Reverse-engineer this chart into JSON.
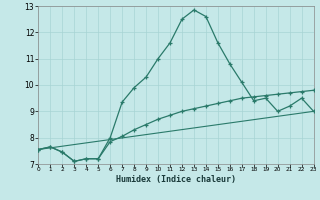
{
  "title": "",
  "xlabel": "Humidex (Indice chaleur)",
  "xlim": [
    0,
    23
  ],
  "ylim": [
    7,
    13
  ],
  "yticks": [
    7,
    8,
    9,
    10,
    11,
    12,
    13
  ],
  "xticks": [
    0,
    1,
    2,
    3,
    4,
    5,
    6,
    7,
    8,
    9,
    10,
    11,
    12,
    13,
    14,
    15,
    16,
    17,
    18,
    19,
    20,
    21,
    22,
    23
  ],
  "background_color": "#c5e8e8",
  "grid_color": "#a8d4d4",
  "line_color": "#2a7a6a",
  "line1_x": [
    0,
    1,
    2,
    3,
    4,
    5,
    6,
    7,
    8,
    9,
    10,
    11,
    12,
    13,
    14,
    15,
    16,
    17,
    18,
    19,
    20,
    21,
    22,
    23
  ],
  "line1_y": [
    7.55,
    7.65,
    7.45,
    7.1,
    7.2,
    7.2,
    8.0,
    9.35,
    9.9,
    10.3,
    11.0,
    11.6,
    12.5,
    12.85,
    12.6,
    11.6,
    10.8,
    10.1,
    9.4,
    9.5,
    9.0,
    9.2,
    9.5,
    9.0
  ],
  "line2_x": [
    0,
    1,
    2,
    3,
    4,
    5,
    6,
    7,
    8,
    9,
    10,
    11,
    12,
    13,
    14,
    15,
    16,
    17,
    18,
    19,
    20,
    21,
    22,
    23
  ],
  "line2_y": [
    7.55,
    7.65,
    7.45,
    7.1,
    7.2,
    7.2,
    7.85,
    8.05,
    8.3,
    8.5,
    8.7,
    8.85,
    9.0,
    9.1,
    9.2,
    9.3,
    9.4,
    9.5,
    9.55,
    9.6,
    9.65,
    9.7,
    9.75,
    9.8
  ],
  "line3_x": [
    0,
    23
  ],
  "line3_y": [
    7.55,
    9.0
  ]
}
